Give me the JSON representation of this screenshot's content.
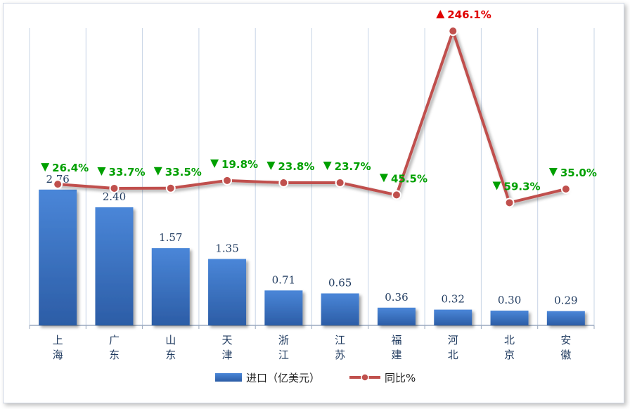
{
  "chart_data": {
    "type": "bar",
    "categories": [
      "上\n海",
      "广\n东",
      "山\n东",
      "天\n津",
      "浙\n江",
      "江\n苏",
      "福\n建",
      "河\n北",
      "北\n京",
      "安\n徽"
    ],
    "series": [
      {
        "name": "进口（亿美元）",
        "kind": "bar",
        "color": "#3b74c4",
        "values": [
          2.76,
          2.4,
          1.57,
          1.35,
          0.71,
          0.65,
          0.36,
          0.32,
          0.3,
          0.29
        ],
        "labels": [
          "2.76",
          "2.40",
          "1.57",
          "1.35",
          "0.71",
          "0.65",
          "0.36",
          "0.32",
          "0.30",
          "0.29"
        ]
      },
      {
        "name": "同比%",
        "kind": "line",
        "color": "#c0504d",
        "values": [
          -26.4,
          -33.7,
          -33.5,
          -19.8,
          -23.8,
          -23.7,
          -45.5,
          246.1,
          -59.3,
          -35.0
        ],
        "labels": [
          "26.4%",
          "33.7%",
          "33.5%",
          "19.8%",
          "23.8%",
          "23.7%",
          "45.5%",
          "246.1%",
          "59.3%",
          "35.0%"
        ],
        "direction": [
          "down",
          "down",
          "down",
          "down",
          "down",
          "down",
          "down",
          "up",
          "down",
          "down"
        ]
      }
    ],
    "colors": {
      "up": "#e00000",
      "down": "#00a000"
    },
    "legend": {
      "position": "bottom"
    },
    "grid": "vertical"
  }
}
